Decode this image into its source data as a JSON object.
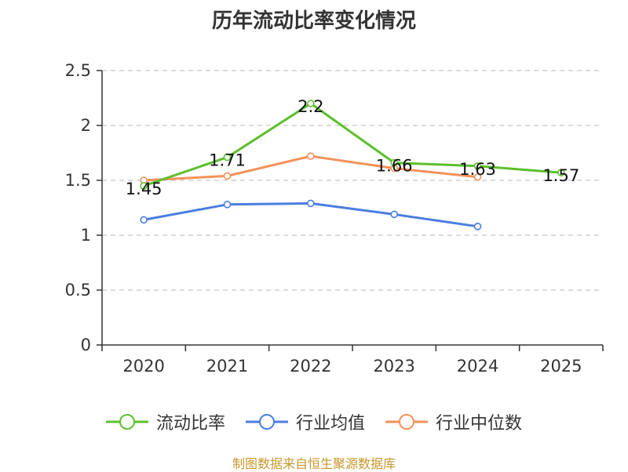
{
  "chart_data": {
    "type": "line",
    "title": "历年流动比率变化情况",
    "categories": [
      "2020",
      "2021",
      "2022",
      "2023",
      "2024",
      "2025"
    ],
    "y_ticks": [
      "0",
      "0.5",
      "1",
      "1.5",
      "2",
      "2.5"
    ],
    "ylim": [
      0,
      2.5
    ],
    "grid": true,
    "legend_position": "bottom",
    "series": [
      {
        "name": "流动比率",
        "color": "#5cc02c",
        "values": [
          1.45,
          1.71,
          2.2,
          1.66,
          1.63,
          1.57
        ],
        "labels": [
          "1.45",
          "1.71",
          "2.2",
          "1.66",
          "1.63",
          "1.57"
        ]
      },
      {
        "name": "行业均值",
        "color": "#4a7ee0",
        "values": [
          1.14,
          1.28,
          1.29,
          1.19,
          1.08,
          null
        ]
      },
      {
        "name": "行业中位数",
        "color": "#f4915a",
        "values": [
          1.5,
          1.54,
          1.72,
          1.61,
          1.53,
          null
        ]
      }
    ]
  },
  "source": {
    "text": "制图数据来自恒生聚源数据库",
    "color": "#c8962e"
  }
}
